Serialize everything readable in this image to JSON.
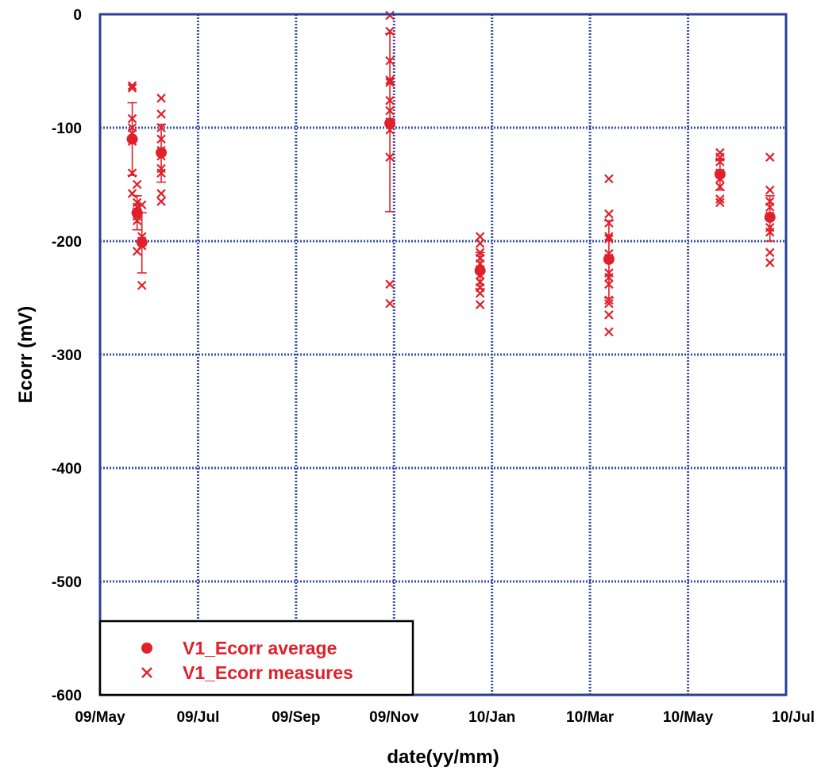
{
  "chart_data": {
    "type": "scatter",
    "xlabel": "date(yy/mm)",
    "ylabel": "Ecorr (mV)",
    "x_ticks": [
      "09/May",
      "09/Jul",
      "09/Sep",
      "09/Nov",
      "10/Jan",
      "10/Mar",
      "10/May",
      "10/Jul"
    ],
    "xlim": [
      "2009-05-01",
      "2010-07-01"
    ],
    "ylim": [
      -600,
      0
    ],
    "y_ticks": [
      "0",
      "-100",
      "-200",
      "-300",
      "-400",
      "-500",
      "-600"
    ],
    "y_tick_values": [
      0,
      -100,
      -200,
      -300,
      -400,
      -500,
      -600
    ],
    "grid": true,
    "legend_position": "bottom-left",
    "color": "#e0202a",
    "series": [
      {
        "name": "V1_Ecorr average",
        "marker": "filled-circle",
        "error_bars": true,
        "points": [
          {
            "x": "2009-05-21",
            "y": -110,
            "err_low": -142,
            "err_high": -78
          },
          {
            "x": "2009-05-24",
            "y": -175,
            "err_low": -190,
            "err_high": -160
          },
          {
            "x": "2009-05-27",
            "y": -201,
            "err_low": -228,
            "err_high": -175
          },
          {
            "x": "2009-06-08",
            "y": -122,
            "err_low": -148,
            "err_high": -97
          },
          {
            "x": "2009-10-28",
            "y": -96,
            "err_low": -174,
            "err_high": -17
          },
          {
            "x": "2009-12-23",
            "y": -226,
            "err_low": -242,
            "err_high": -210
          },
          {
            "x": "2010-03-13",
            "y": -216,
            "err_low": -250,
            "err_high": -182
          },
          {
            "x": "2010-05-21",
            "y": -141,
            "err_low": -155,
            "err_high": -128
          },
          {
            "x": "2010-06-21",
            "y": -179,
            "err_low": -200,
            "err_high": -160
          }
        ]
      },
      {
        "name": "V1_Ecorr measures",
        "marker": "x",
        "points": [
          {
            "x": "2009-05-21",
            "y": -63
          },
          {
            "x": "2009-05-21",
            "y": -65
          },
          {
            "x": "2009-05-21",
            "y": -92
          },
          {
            "x": "2009-05-21",
            "y": -100
          },
          {
            "x": "2009-05-21",
            "y": -105
          },
          {
            "x": "2009-05-21",
            "y": -112
          },
          {
            "x": "2009-05-21",
            "y": -140
          },
          {
            "x": "2009-05-21",
            "y": -158
          },
          {
            "x": "2009-05-24",
            "y": -150
          },
          {
            "x": "2009-05-24",
            "y": -166
          },
          {
            "x": "2009-05-24",
            "y": -170
          },
          {
            "x": "2009-05-24",
            "y": -174
          },
          {
            "x": "2009-05-24",
            "y": -178
          },
          {
            "x": "2009-05-24",
            "y": -182
          },
          {
            "x": "2009-05-24",
            "y": -209
          },
          {
            "x": "2009-05-27",
            "y": -168
          },
          {
            "x": "2009-05-27",
            "y": -196
          },
          {
            "x": "2009-05-27",
            "y": -200
          },
          {
            "x": "2009-05-27",
            "y": -204
          },
          {
            "x": "2009-05-27",
            "y": -239
          },
          {
            "x": "2009-06-08",
            "y": -74
          },
          {
            "x": "2009-06-08",
            "y": -88
          },
          {
            "x": "2009-06-08",
            "y": -100
          },
          {
            "x": "2009-06-08",
            "y": -110
          },
          {
            "x": "2009-06-08",
            "y": -120
          },
          {
            "x": "2009-06-08",
            "y": -125
          },
          {
            "x": "2009-06-08",
            "y": -136
          },
          {
            "x": "2009-06-08",
            "y": -140
          },
          {
            "x": "2009-06-08",
            "y": -158
          },
          {
            "x": "2009-06-08",
            "y": -165
          },
          {
            "x": "2009-10-28",
            "y": -1
          },
          {
            "x": "2009-10-28",
            "y": -15
          },
          {
            "x": "2009-10-28",
            "y": -41
          },
          {
            "x": "2009-10-28",
            "y": -58
          },
          {
            "x": "2009-10-28",
            "y": -60
          },
          {
            "x": "2009-10-28",
            "y": -76
          },
          {
            "x": "2009-10-28",
            "y": -85
          },
          {
            "x": "2009-10-28",
            "y": -95
          },
          {
            "x": "2009-10-28",
            "y": -102
          },
          {
            "x": "2009-10-28",
            "y": -126
          },
          {
            "x": "2009-10-28",
            "y": -238
          },
          {
            "x": "2009-10-28",
            "y": -255
          },
          {
            "x": "2009-12-23",
            "y": -196
          },
          {
            "x": "2009-12-23",
            "y": -202
          },
          {
            "x": "2009-12-23",
            "y": -210
          },
          {
            "x": "2009-12-23",
            "y": -215
          },
          {
            "x": "2009-12-23",
            "y": -220
          },
          {
            "x": "2009-12-23",
            "y": -225
          },
          {
            "x": "2009-12-23",
            "y": -230
          },
          {
            "x": "2009-12-23",
            "y": -236
          },
          {
            "x": "2009-12-23",
            "y": -241
          },
          {
            "x": "2009-12-23",
            "y": -246
          },
          {
            "x": "2009-12-23",
            "y": -256
          },
          {
            "x": "2010-03-13",
            "y": -145
          },
          {
            "x": "2010-03-13",
            "y": -176
          },
          {
            "x": "2010-03-13",
            "y": -184
          },
          {
            "x": "2010-03-13",
            "y": -196
          },
          {
            "x": "2010-03-13",
            "y": -198
          },
          {
            "x": "2010-03-13",
            "y": -211
          },
          {
            "x": "2010-03-13",
            "y": -215
          },
          {
            "x": "2010-03-13",
            "y": -228
          },
          {
            "x": "2010-03-13",
            "y": -232
          },
          {
            "x": "2010-03-13",
            "y": -238
          },
          {
            "x": "2010-03-13",
            "y": -252
          },
          {
            "x": "2010-03-13",
            "y": -255
          },
          {
            "x": "2010-03-13",
            "y": -265
          },
          {
            "x": "2010-03-13",
            "y": -280
          },
          {
            "x": "2010-05-21",
            "y": -122
          },
          {
            "x": "2010-05-21",
            "y": -126
          },
          {
            "x": "2010-05-21",
            "y": -130
          },
          {
            "x": "2010-05-21",
            "y": -140
          },
          {
            "x": "2010-05-21",
            "y": -145
          },
          {
            "x": "2010-05-21",
            "y": -152
          },
          {
            "x": "2010-05-21",
            "y": -163
          },
          {
            "x": "2010-05-21",
            "y": -166
          },
          {
            "x": "2010-06-21",
            "y": -126
          },
          {
            "x": "2010-06-21",
            "y": -155
          },
          {
            "x": "2010-06-21",
            "y": -165
          },
          {
            "x": "2010-06-21",
            "y": -170
          },
          {
            "x": "2010-06-21",
            "y": -178
          },
          {
            "x": "2010-06-21",
            "y": -188
          },
          {
            "x": "2010-06-21",
            "y": -192
          },
          {
            "x": "2010-06-21",
            "y": -210
          },
          {
            "x": "2010-06-21",
            "y": -219
          }
        ]
      }
    ]
  }
}
